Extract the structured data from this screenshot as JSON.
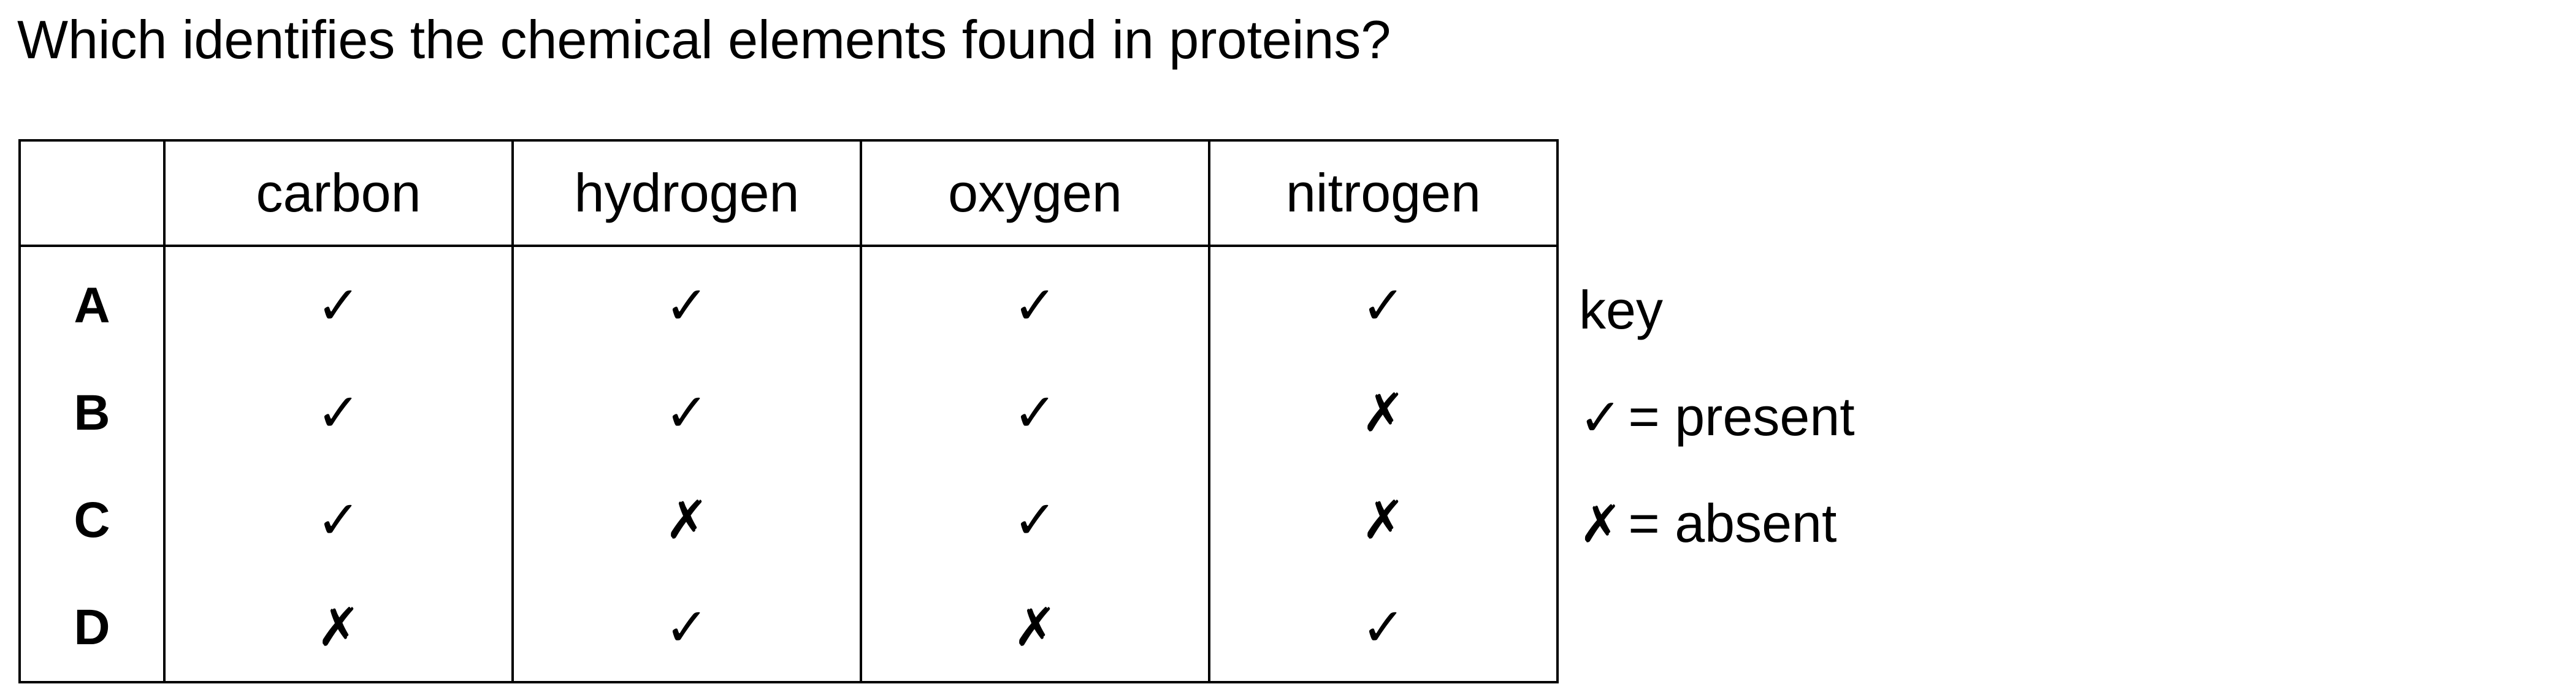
{
  "question": "Which identifies the chemical elements found in proteins?",
  "table": {
    "corner": "",
    "columns": [
      "carbon",
      "hydrogen",
      "oxygen",
      "nitrogen"
    ],
    "rows": [
      {
        "label": "A",
        "cells": [
          "✓",
          "✓",
          "✓",
          "✓"
        ]
      },
      {
        "label": "B",
        "cells": [
          "✓",
          "✓",
          "✓",
          "✗"
        ]
      },
      {
        "label": "C",
        "cells": [
          "✓",
          "✗",
          "✓",
          "✗"
        ]
      },
      {
        "label": "D",
        "cells": [
          "✗",
          "✓",
          "✗",
          "✓"
        ]
      }
    ]
  },
  "key": {
    "title": "key",
    "present_symbol": "✓",
    "present_text": "= present",
    "absent_symbol": "✗",
    "absent_text": "= absent"
  }
}
